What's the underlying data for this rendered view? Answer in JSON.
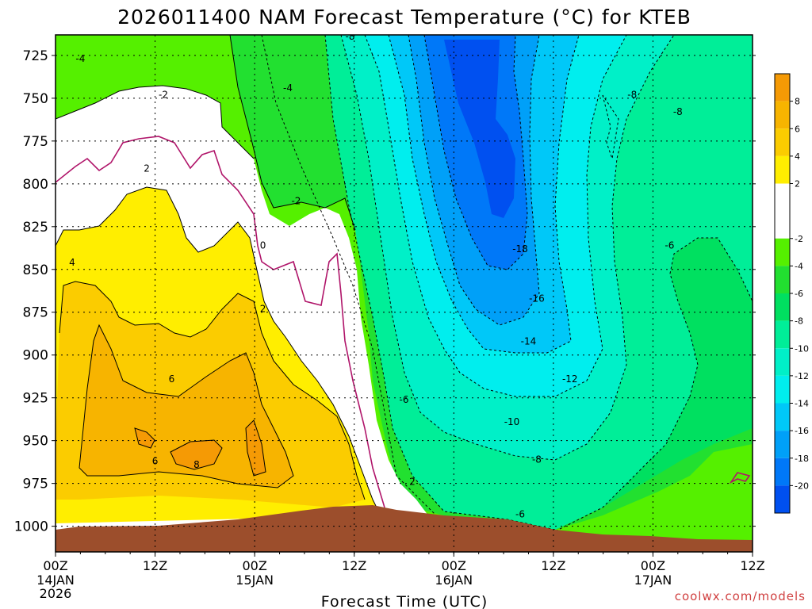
{
  "chart_data": {
    "type": "heatmap",
    "title": "2026011400 NAM Forecast Temperature (°C) for KTEB",
    "xlabel": "Forecast Time (UTC)",
    "ylabel": "",
    "x_ticks": [
      "00Z",
      "12Z",
      "00Z",
      "12Z",
      "00Z",
      "12Z",
      "00Z",
      "12Z"
    ],
    "x_tick_hours": [
      0,
      12,
      24,
      36,
      48,
      60,
      72,
      84
    ],
    "x_day_labels": [
      {
        "hour": 0,
        "lines": [
          "14JAN",
          "2026"
        ]
      },
      {
        "hour": 24,
        "lines": [
          "15JAN"
        ]
      },
      {
        "hour": 48,
        "lines": [
          "16JAN"
        ]
      },
      {
        "hour": 72,
        "lines": [
          "17JAN"
        ]
      }
    ],
    "xlim_hours": [
      0,
      84
    ],
    "y_ticks": [
      725,
      750,
      775,
      800,
      825,
      850,
      875,
      900,
      925,
      950,
      975,
      1000
    ],
    "ylim_hPa": [
      1015,
      713
    ],
    "grid": true,
    "colorbar": {
      "position": "right",
      "ticks": [
        8,
        6,
        4,
        2,
        -2,
        -4,
        -6,
        -8,
        -10,
        -12,
        -14,
        -16,
        -18,
        -20
      ],
      "bands": [
        {
          "from": 10,
          "to": 8,
          "color": "#f59a05"
        },
        {
          "from": 8,
          "to": 6,
          "color": "#f7b400"
        },
        {
          "from": 6,
          "to": 4,
          "color": "#fbcc00"
        },
        {
          "from": 4,
          "to": 2,
          "color": "#ffee00"
        },
        {
          "from": 2,
          "to": -2,
          "color": "#ffffff"
        },
        {
          "from": -2,
          "to": -4,
          "color": "#55f000"
        },
        {
          "from": -4,
          "to": -6,
          "color": "#22e030"
        },
        {
          "from": -6,
          "to": -8,
          "color": "#00e060"
        },
        {
          "from": -8,
          "to": -10,
          "color": "#00ee98"
        },
        {
          "from": -10,
          "to": -12,
          "color": "#00f0c8"
        },
        {
          "from": -12,
          "to": -14,
          "color": "#00eeee"
        },
        {
          "from": -14,
          "to": -16,
          "color": "#00c8f8"
        },
        {
          "from": -16,
          "to": -18,
          "color": "#00a0f8"
        },
        {
          "from": -18,
          "to": -20,
          "color": "#0078f8"
        },
        {
          "from": -20,
          "to": -22,
          "color": "#0050f0"
        }
      ]
    },
    "ground_color": "#9c4e2c",
    "freezing_line_color": "#b0156a",
    "contour_labels": [
      {
        "text": "-4",
        "hour": 3,
        "p": 727
      },
      {
        "text": "-2",
        "hour": 13,
        "p": 748
      },
      {
        "text": "-4",
        "hour": 28,
        "p": 744
      },
      {
        "text": "-8",
        "hour": 35.5,
        "p": 714
      },
      {
        "text": "-8",
        "hour": 69.5,
        "p": 748
      },
      {
        "text": "-8",
        "hour": 75,
        "p": 758
      },
      {
        "text": "2",
        "hour": 11,
        "p": 791
      },
      {
        "text": "-2",
        "hour": 29,
        "p": 810
      },
      {
        "text": "0",
        "hour": 25,
        "p": 836
      },
      {
        "text": "4",
        "hour": 2,
        "p": 846
      },
      {
        "text": "-18",
        "hour": 56,
        "p": 838
      },
      {
        "text": "-6",
        "hour": 74,
        "p": 836
      },
      {
        "text": "2",
        "hour": 25,
        "p": 873
      },
      {
        "text": "-16",
        "hour": 58,
        "p": 867
      },
      {
        "text": "-14",
        "hour": 57,
        "p": 892
      },
      {
        "text": "6",
        "hour": 14,
        "p": 914
      },
      {
        "text": "-6",
        "hour": 42,
        "p": 926
      },
      {
        "text": "-12",
        "hour": 62,
        "p": 914
      },
      {
        "text": "-10",
        "hour": 55,
        "p": 939
      },
      {
        "text": "6",
        "hour": 12,
        "p": 962
      },
      {
        "text": "8",
        "hour": 17,
        "p": 964
      },
      {
        "text": "-8",
        "hour": 58,
        "p": 961
      },
      {
        "text": "2",
        "hour": 43,
        "p": 974
      },
      {
        "text": "-6",
        "hour": 56,
        "p": 993
      }
    ]
  },
  "credit": "coolwx.com/models"
}
